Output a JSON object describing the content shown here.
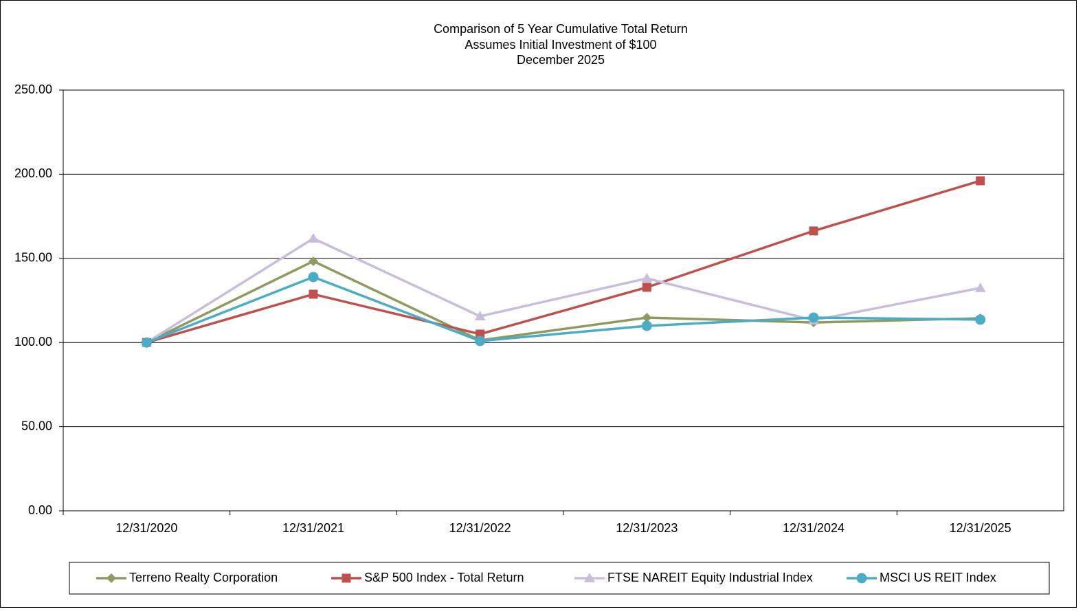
{
  "chart_data": {
    "type": "line",
    "title": "Comparison of 5 Year Cumulative Total Return",
    "subtitle": [
      "Assumes Initial Investment of $100",
      "December 2025"
    ],
    "categories": [
      "12/31/2020",
      "12/31/2021",
      "12/31/2022",
      "12/31/2023",
      "12/31/2024",
      "12/31/2025"
    ],
    "series": [
      {
        "name": "Terreno Realty Corporation",
        "color": "#8f9a5e",
        "marker": "diamond",
        "values": [
          100,
          148.3,
          101.3,
          114.8,
          111.9,
          114.4
        ]
      },
      {
        "name": "S&P 500 Index - Total Return",
        "color": "#c0504d",
        "marker": "square",
        "values": [
          100,
          128.7,
          105.0,
          132.8,
          166.3,
          196.1
        ]
      },
      {
        "name": "FTSE NAREIT Equity Industrial Index",
        "color": "#c8bedb",
        "marker": "triangle",
        "values": [
          100,
          161.8,
          115.6,
          138.1,
          113.2,
          132.4
        ]
      },
      {
        "name": "MSCI US REIT Index",
        "color": "#4bacc6",
        "marker": "circle",
        "values": [
          100,
          138.9,
          100.9,
          109.9,
          114.8,
          113.6
        ]
      }
    ],
    "ylim": [
      0,
      250
    ],
    "yticks": [
      {
        "value": 0,
        "label": "0.00"
      },
      {
        "value": 50,
        "label": "50.00"
      },
      {
        "value": 100,
        "label": "100.00"
      },
      {
        "value": 150,
        "label": "150.00"
      },
      {
        "value": 200,
        "label": "200.00"
      },
      {
        "value": 250,
        "label": "250.00"
      }
    ],
    "grid": true,
    "legend": "bottom"
  }
}
